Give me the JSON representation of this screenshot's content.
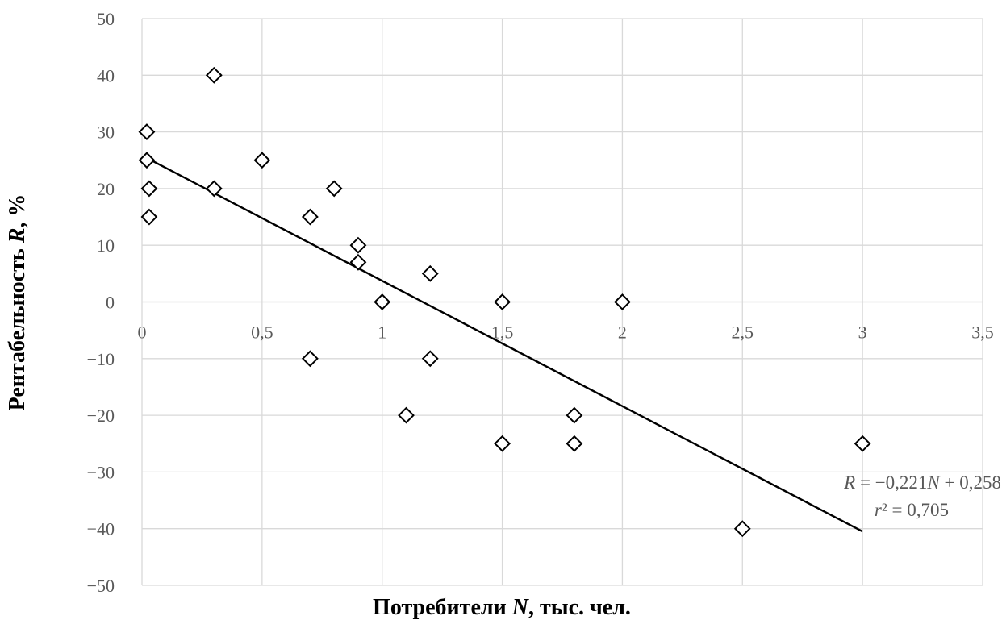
{
  "chart_data": {
    "type": "scatter",
    "title": "",
    "xlabel_main": "Потребители ",
    "xlabel_var": "N",
    "xlabel_rest": ", тыс. чел.",
    "ylabel_main": "Рентабельность ",
    "ylabel_var": "R",
    "ylabel_rest": ", %",
    "xlim": [
      0,
      3.5
    ],
    "ylim": [
      -50,
      50
    ],
    "x_ticks": [
      0,
      0.5,
      1,
      1.5,
      2,
      2.5,
      3,
      3.5
    ],
    "x_tick_labels": [
      "0",
      "0,5",
      "1",
      "1,5",
      "2",
      "2,5",
      "3",
      "3,5"
    ],
    "y_ticks": [
      -50,
      -40,
      -30,
      -20,
      -10,
      0,
      10,
      20,
      30,
      40,
      50
    ],
    "y_tick_labels": [
      "−50",
      "−40",
      "−30",
      "−20",
      "−10",
      "0",
      "10",
      "20",
      "30",
      "40",
      "50"
    ],
    "grid": true,
    "marker": "diamond-open",
    "points": [
      {
        "x": 0.02,
        "y": 30
      },
      {
        "x": 0.02,
        "y": 25
      },
      {
        "x": 0.03,
        "y": 20
      },
      {
        "x": 0.03,
        "y": 15
      },
      {
        "x": 0.3,
        "y": 40
      },
      {
        "x": 0.3,
        "y": 20
      },
      {
        "x": 0.5,
        "y": 25
      },
      {
        "x": 0.7,
        "y": 15
      },
      {
        "x": 0.7,
        "y": -10
      },
      {
        "x": 0.8,
        "y": 20
      },
      {
        "x": 0.9,
        "y": 10
      },
      {
        "x": 0.9,
        "y": 7
      },
      {
        "x": 1.0,
        "y": 0
      },
      {
        "x": 1.1,
        "y": -20
      },
      {
        "x": 1.2,
        "y": 5
      },
      {
        "x": 1.2,
        "y": -10
      },
      {
        "x": 1.5,
        "y": 0
      },
      {
        "x": 1.5,
        "y": -25
      },
      {
        "x": 1.8,
        "y": -20
      },
      {
        "x": 1.8,
        "y": -25
      },
      {
        "x": 2.0,
        "y": 0
      },
      {
        "x": 2.5,
        "y": -40
      },
      {
        "x": 3.0,
        "y": -25
      }
    ],
    "trendline": {
      "x_start": 0.02,
      "y_start": 25.4,
      "x_end": 3.0,
      "y_end": -40.5
    },
    "equation": {
      "line1_a": "R",
      "line1_b": " = −0,221",
      "line1_c": "N",
      "line1_d": " + 0,258",
      "line2_a": "r",
      "line2_b": "² = 0,705"
    }
  }
}
